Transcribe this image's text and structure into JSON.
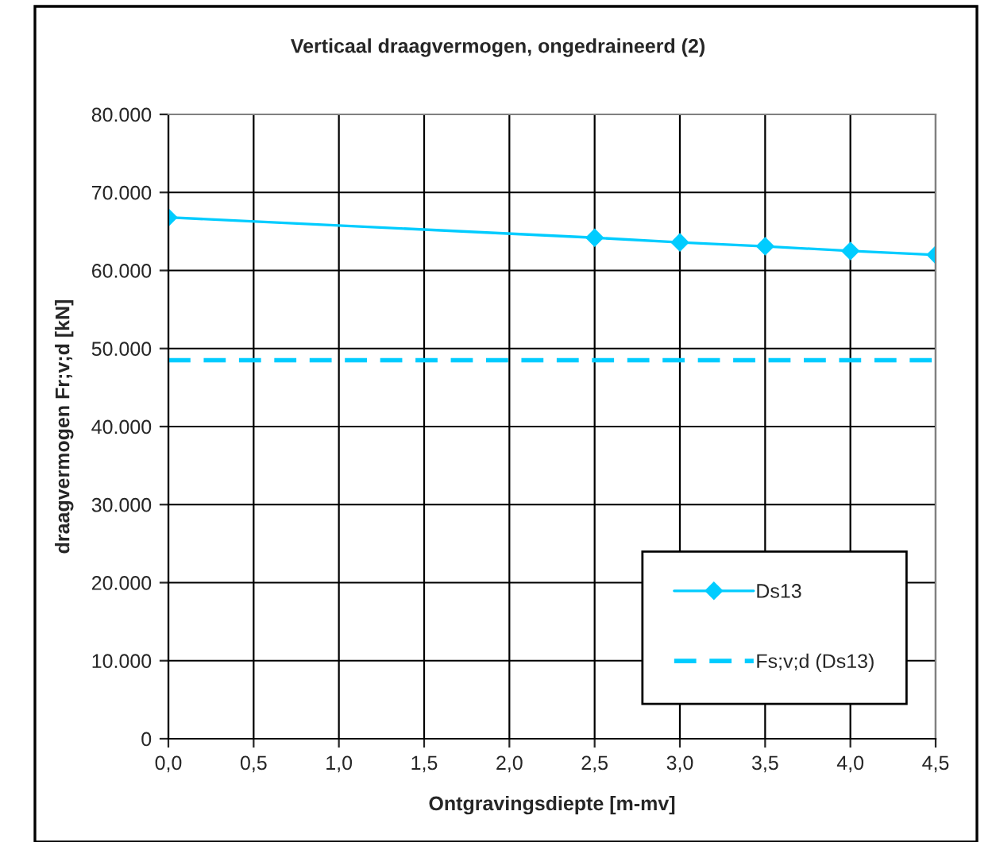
{
  "chart_data": {
    "type": "line",
    "title": "Verticaal draagvermogen, ongedraineerd (2)",
    "xlabel": "Ontgravingsdiepte [m-mv]",
    "ylabel": "draagvermogen Fr;v;d [kN]",
    "series": [
      {
        "name": "Ds13",
        "color": "#00ccff",
        "x": [
          0,
          2.5,
          3.0,
          3.5,
          4.0,
          4.5
        ],
        "values": [
          66800,
          64200,
          63600,
          63100,
          62500,
          62000
        ],
        "marker": "diamond",
        "line_style": "solid"
      },
      {
        "name": "Fs;v;d (Ds13)",
        "color": "#00ccff",
        "x": [
          0,
          4.5
        ],
        "values": [
          48500,
          48500
        ],
        "marker": "none",
        "line_style": "dashed"
      }
    ],
    "xlim": [
      0,
      4.5
    ],
    "ylim": [
      0,
      80000
    ],
    "xticks": [
      {
        "value": 0,
        "label": "0,0"
      },
      {
        "value": 0.5,
        "label": "0,5"
      },
      {
        "value": 1,
        "label": "1,0"
      },
      {
        "value": 1.5,
        "label": "1,5"
      },
      {
        "value": 2,
        "label": "2,0"
      },
      {
        "value": 2.5,
        "label": "2,5"
      },
      {
        "value": 3,
        "label": "3,0"
      },
      {
        "value": 3.5,
        "label": "3,5"
      },
      {
        "value": 4,
        "label": "4,0"
      },
      {
        "value": 4.5,
        "label": "4,5"
      }
    ],
    "yticks": [
      0,
      {
        "value": 10000,
        "label": "10.000"
      },
      {
        "value": 20000,
        "label": "20.000"
      },
      {
        "value": 30000,
        "label": "30.000"
      },
      {
        "value": 40000,
        "label": "40.000"
      },
      {
        "value": 50000,
        "label": "50.000"
      },
      {
        "value": 60000,
        "label": "60.000"
      },
      {
        "value": 70000,
        "label": "70.000"
      },
      {
        "value": 80000,
        "label": "80.000"
      }
    ],
    "grid": true,
    "legend": "bottom right"
  }
}
